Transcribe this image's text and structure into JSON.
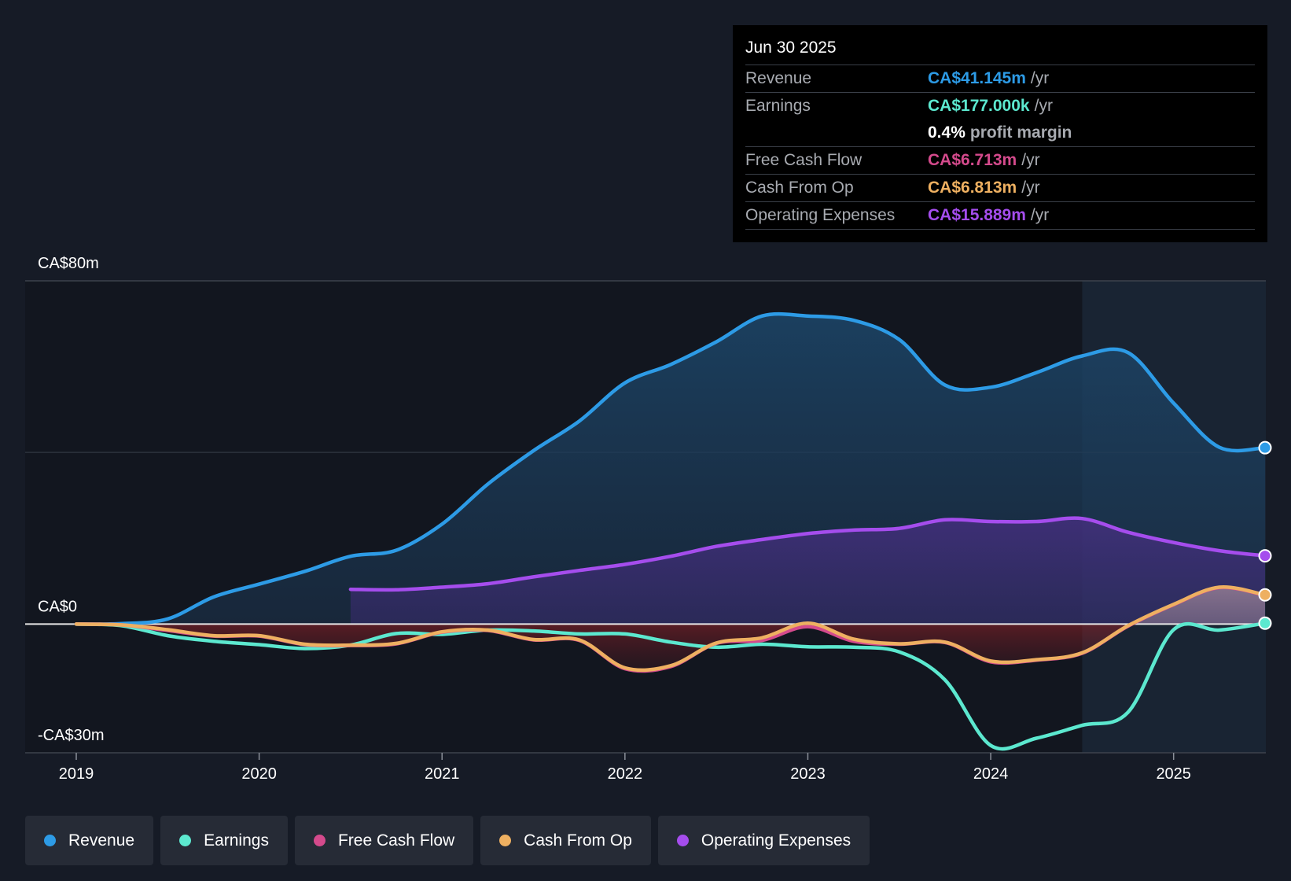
{
  "colors": {
    "revenue": "#2d9be6",
    "earnings": "#5ce8cf",
    "fcf": "#d44a8c",
    "cfo": "#eeb061",
    "opex": "#a54ded",
    "negative_fill": "#b0262b",
    "gray_line": "#8a9596"
  },
  "tooltip": {
    "date": "Jun 30 2025",
    "rows": [
      {
        "label": "Revenue",
        "value": "CA$41.145m",
        "unit": "/yr"
      },
      {
        "label": "Earnings",
        "value": "CA$177.000k",
        "unit": "/yr"
      },
      {
        "label": "",
        "value": "0.4%",
        "unit": "profit margin"
      },
      {
        "label": "Free Cash Flow",
        "value": "CA$6.713m",
        "unit": "/yr"
      },
      {
        "label": "Cash From Op",
        "value": "CA$6.813m",
        "unit": "/yr"
      },
      {
        "label": "Operating Expenses",
        "value": "CA$15.889m",
        "unit": "/yr"
      }
    ]
  },
  "legend": [
    {
      "label": "Revenue",
      "color": "#2d9be6"
    },
    {
      "label": "Earnings",
      "color": "#5ce8cf"
    },
    {
      "label": "Free Cash Flow",
      "color": "#d44a8c"
    },
    {
      "label": "Cash From Op",
      "color": "#eeb061"
    },
    {
      "label": "Operating Expenses",
      "color": "#a54ded"
    }
  ],
  "chart_data": {
    "type": "area",
    "title": "",
    "xlabel": "",
    "ylabel": "",
    "ylim": [
      -30,
      80
    ],
    "y_tick_labels": [
      {
        "value": 80,
        "label": "CA$80m"
      },
      {
        "value": 0,
        "label": "CA$0"
      },
      {
        "value": -30,
        "label": "-CA$30m"
      }
    ],
    "xlim": [
      2018.75,
      2025.5
    ],
    "x_ticks": [
      2019,
      2020,
      2021,
      2022,
      2023,
      2024,
      2025
    ],
    "x_tick_labels": [
      "2019",
      "2020",
      "2021",
      "2022",
      "2023",
      "2024",
      "2025"
    ],
    "highlight_start": 2024.5,
    "series": [
      {
        "name": "Revenue",
        "key": "revenue",
        "points": [
          [
            2019.0,
            0
          ],
          [
            2019.25,
            0.1
          ],
          [
            2019.5,
            1.2
          ],
          [
            2019.75,
            6.3
          ],
          [
            2020.0,
            9.3
          ],
          [
            2020.25,
            12.3
          ],
          [
            2020.5,
            15.8
          ],
          [
            2020.75,
            17.2
          ],
          [
            2021.0,
            23.3
          ],
          [
            2021.25,
            32.6
          ],
          [
            2021.5,
            40.4
          ],
          [
            2021.75,
            47.3
          ],
          [
            2022.0,
            56.2
          ],
          [
            2022.25,
            60.5
          ],
          [
            2022.5,
            65.8
          ],
          [
            2022.75,
            71.8
          ],
          [
            2023.0,
            71.8
          ],
          [
            2023.25,
            70.8
          ],
          [
            2023.5,
            66.3
          ],
          [
            2023.75,
            55.7
          ],
          [
            2024.0,
            55.2
          ],
          [
            2024.25,
            58.6
          ],
          [
            2024.5,
            62.5
          ],
          [
            2024.75,
            63.3
          ],
          [
            2025.0,
            51.5
          ],
          [
            2025.25,
            41.2
          ],
          [
            2025.5,
            41.1
          ]
        ]
      },
      {
        "name": "Operating Expenses",
        "key": "opex",
        "points": [
          [
            2020.5,
            8.1
          ],
          [
            2020.75,
            8.0
          ],
          [
            2021.0,
            8.6
          ],
          [
            2021.25,
            9.4
          ],
          [
            2021.5,
            11.0
          ],
          [
            2021.75,
            12.5
          ],
          [
            2022.0,
            13.9
          ],
          [
            2022.25,
            15.8
          ],
          [
            2022.5,
            18.1
          ],
          [
            2022.75,
            19.7
          ],
          [
            2023.0,
            21.1
          ],
          [
            2023.25,
            21.9
          ],
          [
            2023.5,
            22.3
          ],
          [
            2023.75,
            24.3
          ],
          [
            2024.0,
            23.9
          ],
          [
            2024.25,
            23.9
          ],
          [
            2024.5,
            24.6
          ],
          [
            2024.75,
            21.4
          ],
          [
            2025.0,
            19.0
          ],
          [
            2025.25,
            17.1
          ],
          [
            2025.5,
            15.9
          ]
        ]
      },
      {
        "name": "Earnings",
        "key": "earnings",
        "points": [
          [
            2019.0,
            0
          ],
          [
            2019.25,
            -0.4
          ],
          [
            2019.5,
            -2.7
          ],
          [
            2019.75,
            -4.0
          ],
          [
            2020.0,
            -4.8
          ],
          [
            2020.25,
            -5.7
          ],
          [
            2020.5,
            -4.9
          ],
          [
            2020.75,
            -2.2
          ],
          [
            2021.0,
            -2.4
          ],
          [
            2021.25,
            -1.4
          ],
          [
            2021.5,
            -1.6
          ],
          [
            2021.75,
            -2.3
          ],
          [
            2022.0,
            -2.3
          ],
          [
            2022.25,
            -4.2
          ],
          [
            2022.5,
            -5.4
          ],
          [
            2022.75,
            -4.7
          ],
          [
            2023.0,
            -5.3
          ],
          [
            2023.25,
            -5.4
          ],
          [
            2023.5,
            -6.5
          ],
          [
            2023.75,
            -13.0
          ],
          [
            2024.0,
            -28.3
          ],
          [
            2024.25,
            -26.6
          ],
          [
            2024.5,
            -23.6
          ],
          [
            2024.75,
            -20.6
          ],
          [
            2025.0,
            -1.3
          ],
          [
            2025.25,
            -1.4
          ],
          [
            2025.5,
            0.2
          ]
        ]
      },
      {
        "name": "Free Cash Flow",
        "key": "fcf",
        "points": [
          [
            2019.0,
            0
          ],
          [
            2019.25,
            -0.2
          ],
          [
            2019.5,
            -1.5
          ],
          [
            2019.75,
            -2.8
          ],
          [
            2020.0,
            -2.8
          ],
          [
            2020.25,
            -4.8
          ],
          [
            2020.5,
            -5.0
          ],
          [
            2020.75,
            -4.6
          ],
          [
            2021.0,
            -1.9
          ],
          [
            2021.25,
            -1.5
          ],
          [
            2021.5,
            -3.7
          ],
          [
            2021.75,
            -3.8
          ],
          [
            2022.0,
            -10.4
          ],
          [
            2022.25,
            -9.9
          ],
          [
            2022.5,
            -4.5
          ],
          [
            2022.75,
            -3.8
          ],
          [
            2023.0,
            -0.6
          ],
          [
            2023.25,
            -4.0
          ],
          [
            2023.5,
            -4.7
          ],
          [
            2023.75,
            -4.3
          ],
          [
            2024.0,
            -8.8
          ],
          [
            2024.25,
            -8.4
          ],
          [
            2024.5,
            -6.8
          ],
          [
            2024.75,
            -0.5
          ],
          [
            2025.0,
            4.5
          ],
          [
            2025.25,
            8.5
          ],
          [
            2025.5,
            6.7
          ]
        ]
      },
      {
        "name": "Cash From Op",
        "key": "cfo",
        "points": [
          [
            2019.0,
            0
          ],
          [
            2019.25,
            -0.2
          ],
          [
            2019.5,
            -1.3
          ],
          [
            2019.75,
            -2.7
          ],
          [
            2020.0,
            -2.7
          ],
          [
            2020.25,
            -4.7
          ],
          [
            2020.5,
            -4.9
          ],
          [
            2020.75,
            -4.5
          ],
          [
            2021.0,
            -1.8
          ],
          [
            2021.25,
            -1.4
          ],
          [
            2021.5,
            -3.6
          ],
          [
            2021.75,
            -3.7
          ],
          [
            2022.0,
            -10.2
          ],
          [
            2022.25,
            -9.7
          ],
          [
            2022.5,
            -4.4
          ],
          [
            2022.75,
            -3.2
          ],
          [
            2023.0,
            0.2
          ],
          [
            2023.25,
            -3.5
          ],
          [
            2023.5,
            -4.6
          ],
          [
            2023.75,
            -4.2
          ],
          [
            2024.0,
            -8.6
          ],
          [
            2024.25,
            -8.3
          ],
          [
            2024.5,
            -6.7
          ],
          [
            2024.75,
            -0.4
          ],
          [
            2025.0,
            4.6
          ],
          [
            2025.25,
            8.6
          ],
          [
            2025.5,
            6.8
          ]
        ]
      }
    ]
  }
}
